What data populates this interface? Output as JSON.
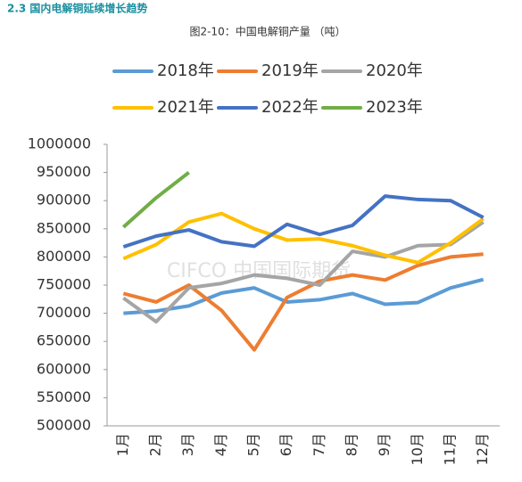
{
  "section_heading": "2.3 国内电解铜延续增长趋势",
  "chart_data": {
    "type": "line",
    "title": "图2-10：中国电解铜产量 （吨）",
    "watermark": "CIFCO 中国国际期货",
    "categories": [
      "1月",
      "2月",
      "3月",
      "4月",
      "5月",
      "6月",
      "7月",
      "8月",
      "9月",
      "10月",
      "11月",
      "12月"
    ],
    "ylim": [
      500000,
      1000000
    ],
    "yticks": [
      500000,
      550000,
      600000,
      650000,
      700000,
      750000,
      800000,
      850000,
      900000,
      950000,
      1000000
    ],
    "grid": false,
    "series": [
      {
        "name": "2018年",
        "color": "#5B9BD5",
        "values": [
          700000,
          704000,
          713000,
          736000,
          745000,
          720000,
          724000,
          735000,
          716000,
          719000,
          745000,
          760000
        ]
      },
      {
        "name": "2019年",
        "color": "#ED7D31",
        "values": [
          735000,
          720000,
          750000,
          705000,
          635000,
          728000,
          757000,
          768000,
          759000,
          785000,
          800000,
          805000
        ]
      },
      {
        "name": "2020年",
        "color": "#A5A5A5",
        "values": [
          727000,
          685000,
          745000,
          753000,
          768000,
          762000,
          750000,
          810000,
          800000,
          820000,
          822000,
          862000
        ]
      },
      {
        "name": "2021年",
        "color": "#FFC000",
        "values": [
          797000,
          822000,
          862000,
          877000,
          850000,
          830000,
          832000,
          820000,
          803000,
          790000,
          825000,
          868000
        ]
      },
      {
        "name": "2022年",
        "color": "#4472C4",
        "values": [
          818000,
          837000,
          848000,
          827000,
          819000,
          858000,
          840000,
          856000,
          908000,
          902000,
          900000,
          870000
        ]
      },
      {
        "name": "2023年",
        "color": "#70AD47",
        "values": [
          853000,
          905000,
          950000,
          null,
          null,
          null,
          null,
          null,
          null,
          null,
          null,
          null
        ]
      }
    ]
  }
}
